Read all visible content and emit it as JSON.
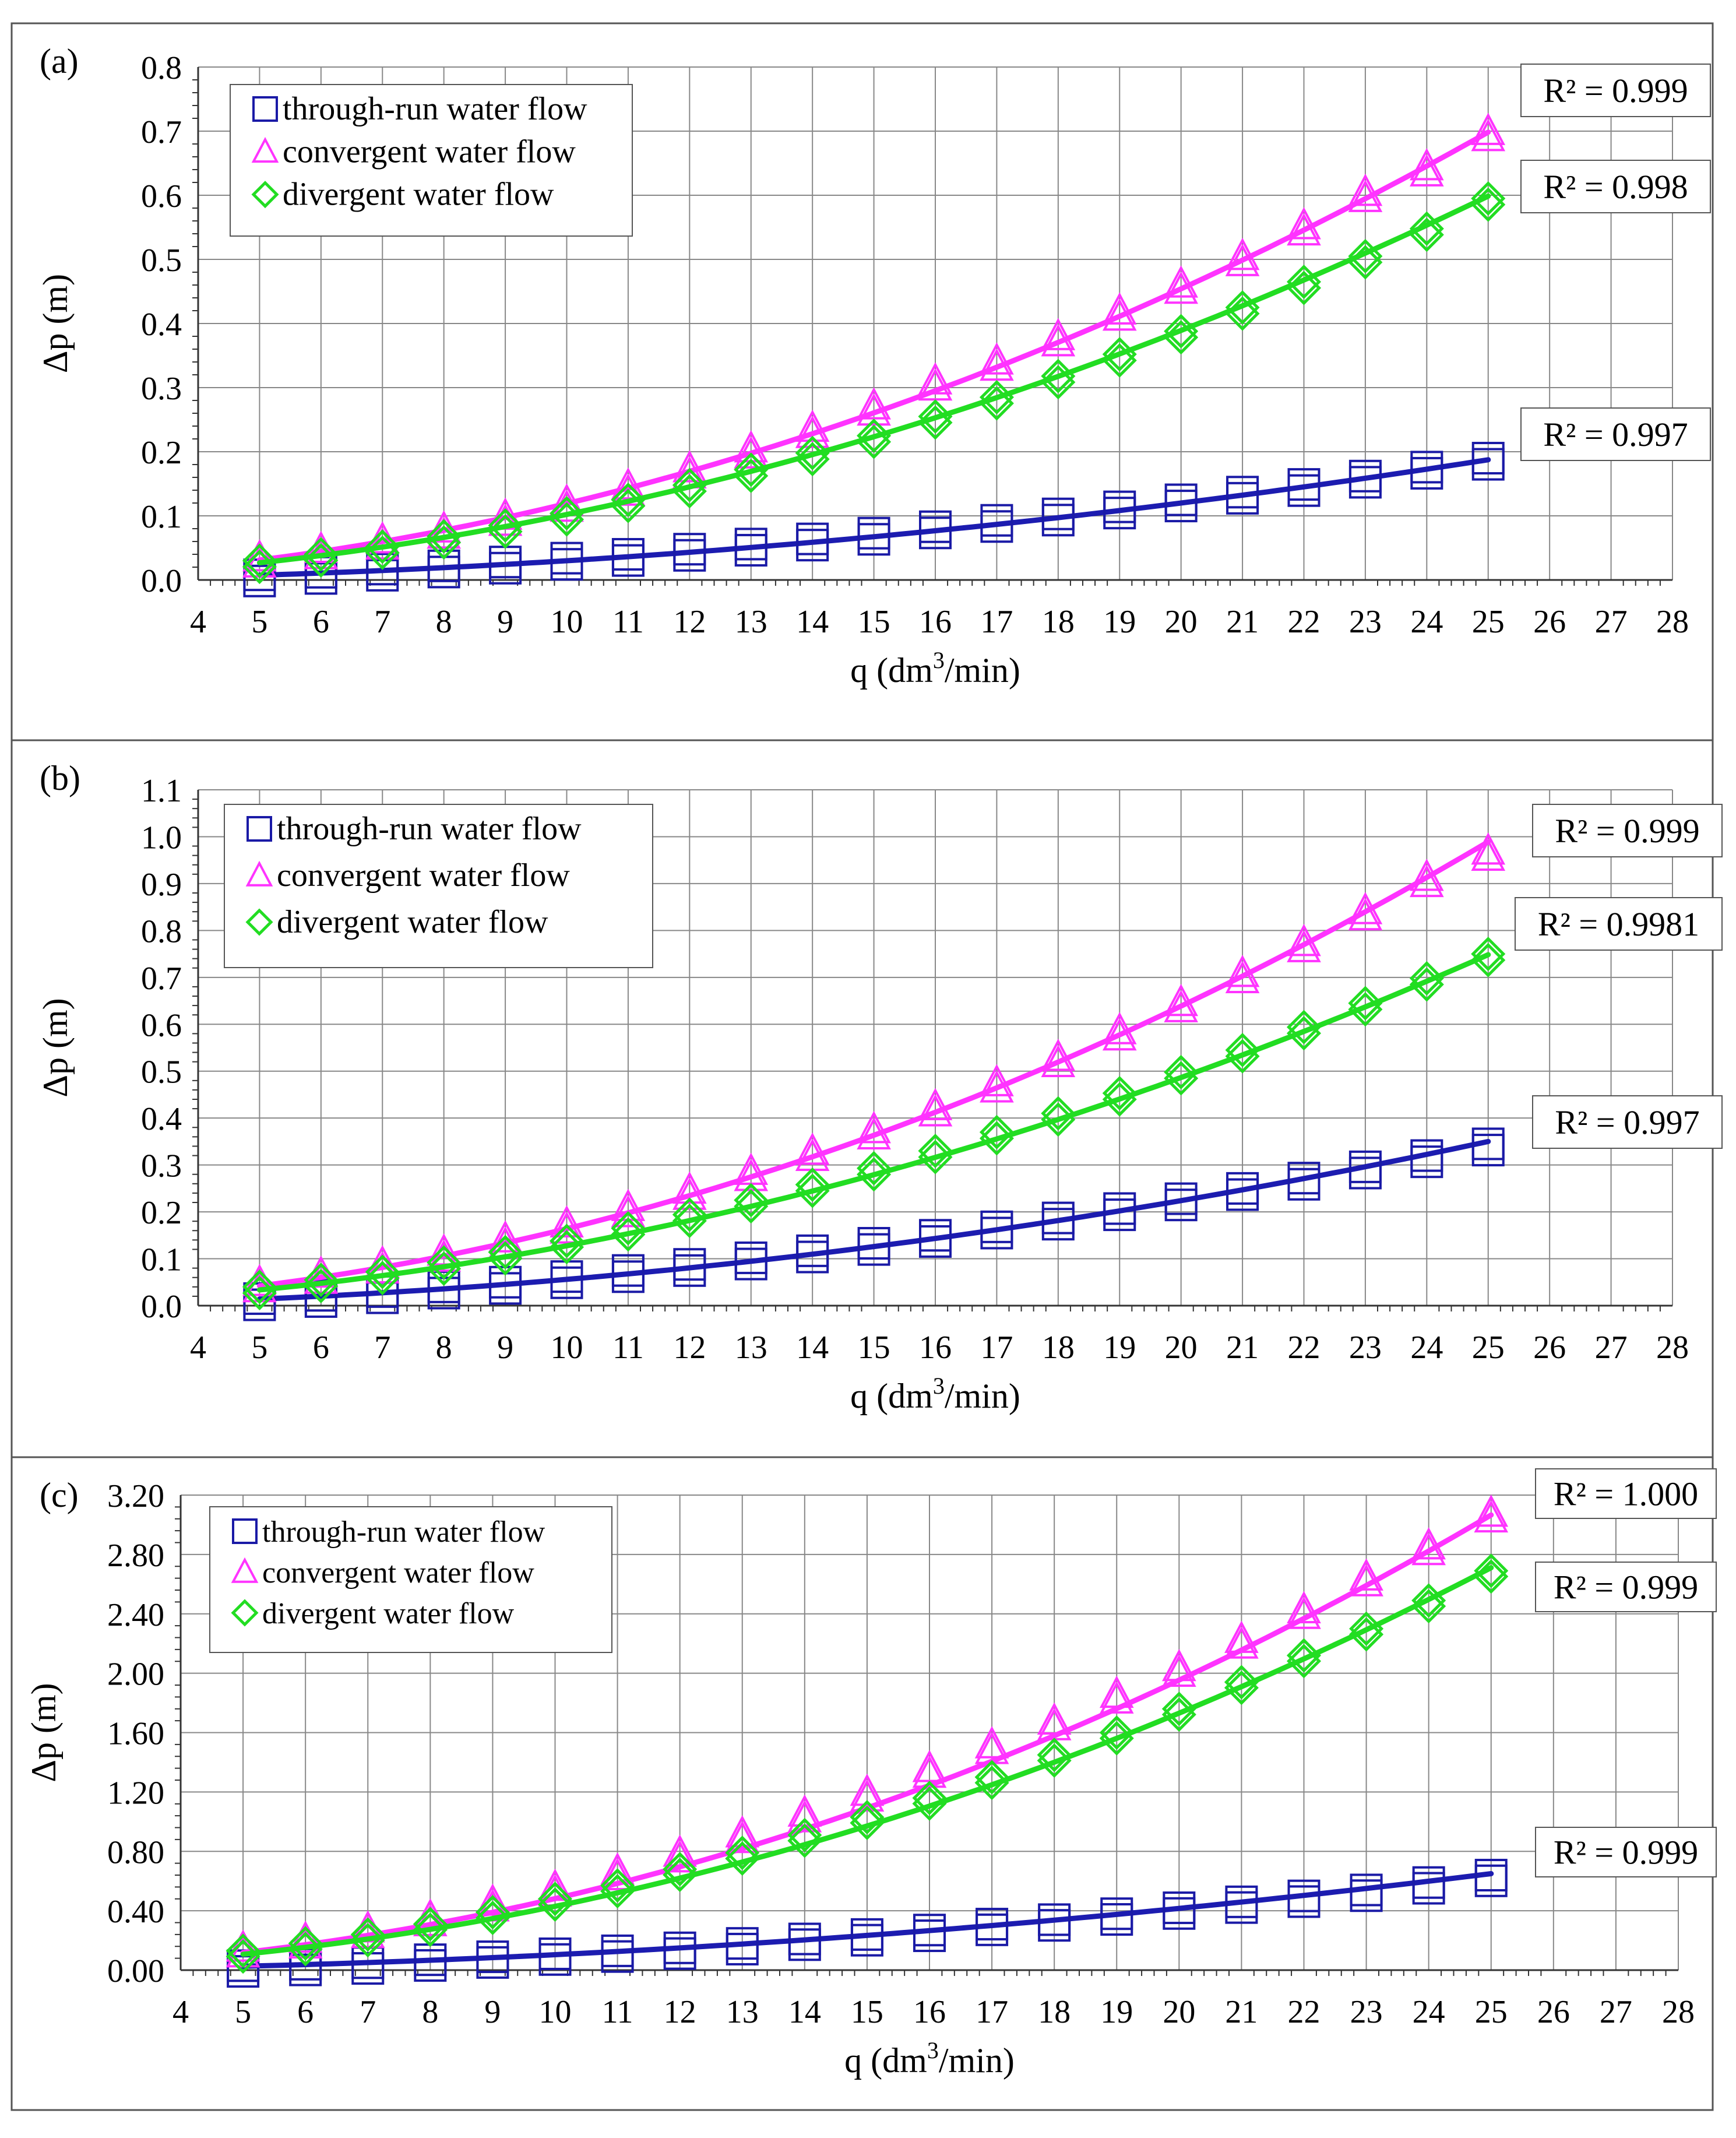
{
  "figure": {
    "panels": [
      {
        "chart_data": {
          "type": "scatter",
          "panel_label": "(a)",
          "xlabel": "q (dm3/min)",
          "ylabel": "Δp (m)",
          "xlim": [
            4,
            28
          ],
          "ylim": [
            0,
            0.8
          ],
          "x_ticks": [
            4,
            5,
            6,
            7,
            8,
            9,
            10,
            11,
            12,
            13,
            14,
            15,
            16,
            17,
            18,
            19,
            20,
            21,
            22,
            23,
            24,
            25,
            26,
            27,
            28
          ],
          "y_ticks": [
            0,
            0.1,
            0.2,
            0.3,
            0.4,
            0.5,
            0.6,
            0.7,
            0.8
          ],
          "y_tick_labels": [
            "0.0",
            "0.1",
            "0.2",
            "0.3",
            "0.4",
            "0.5",
            "0.6",
            "0.7",
            "0.8"
          ],
          "grid": true,
          "legend_position": "top-left",
          "x": [
            5,
            6,
            7,
            8,
            9,
            10,
            11,
            12,
            13,
            14,
            15,
            16,
            17,
            18,
            19,
            20,
            21,
            22,
            23,
            24,
            25
          ],
          "series": [
            {
              "name": "through-run water flow",
              "marker": "square",
              "marker_color": "#1a1aa6",
              "line_color": "#1c1cb0",
              "values": [
                0.008,
                0.012,
                0.017,
                0.022,
                0.028,
                0.034,
                0.04,
                0.048,
                0.056,
                0.064,
                0.073,
                0.083,
                0.093,
                0.103,
                0.114,
                0.125,
                0.137,
                0.149,
                0.162,
                0.176,
                0.19
              ],
              "fit": {
                "a": 0.0003,
                "b": 2.0
              }
            },
            {
              "name": "convergent water flow",
              "marker": "triangle",
              "marker_color": "#ff33ff",
              "line_color": "#ff33ff",
              "values": [
                0.035,
                0.048,
                0.063,
                0.08,
                0.1,
                0.122,
                0.147,
                0.174,
                0.205,
                0.237,
                0.272,
                0.311,
                0.342,
                0.38,
                0.42,
                0.462,
                0.505,
                0.553,
                0.605,
                0.645,
                0.7
              ],
              "fit": {
                "a": 0.0014,
                "b": 1.93
              }
            },
            {
              "name": "divergent water flow",
              "marker": "diamond",
              "marker_color": "#22dd22",
              "line_color": "#22dd22",
              "values": [
                0.03,
                0.04,
                0.052,
                0.068,
                0.085,
                0.104,
                0.125,
                0.148,
                0.172,
                0.198,
                0.225,
                0.255,
                0.285,
                0.318,
                0.352,
                0.388,
                0.425,
                0.465,
                0.505,
                0.548,
                0.595
              ],
              "fit": {
                "a": 0.0012,
                "b": 1.93
              }
            }
          ],
          "annotations": [
            "R² = 0.999",
            "R² = 0.998",
            "R² = 0.997"
          ]
        }
      },
      {
        "chart_data": {
          "type": "scatter",
          "panel_label": "(b)",
          "xlabel": "q (dm3/min)",
          "ylabel": "Δp (m)",
          "xlim": [
            4,
            28
          ],
          "ylim": [
            0,
            1.1
          ],
          "x_ticks": [
            4,
            5,
            6,
            7,
            8,
            9,
            10,
            11,
            12,
            13,
            14,
            15,
            16,
            17,
            18,
            19,
            20,
            21,
            22,
            23,
            24,
            25,
            26,
            27,
            28
          ],
          "y_ticks": [
            0,
            0.1,
            0.2,
            0.3,
            0.4,
            0.5,
            0.6,
            0.7,
            0.8,
            0.9,
            1.0,
            1.1
          ],
          "y_tick_labels": [
            "0.0",
            "0.1",
            "0.2",
            "0.3",
            "0.4",
            "0.5",
            "0.6",
            "0.7",
            "0.8",
            "0.9",
            "1.0",
            "1.1"
          ],
          "grid": true,
          "legend_position": "top-left",
          "x": [
            5,
            6,
            7,
            8,
            9,
            10,
            11,
            12,
            13,
            14,
            15,
            16,
            17,
            18,
            19,
            20,
            21,
            22,
            23,
            24,
            25
          ],
          "series": [
            {
              "name": "through-run water flow",
              "marker": "square",
              "marker_color": "#1a1aa6",
              "line_color": "#1c1cb0",
              "values": [
                0.015,
                0.022,
                0.03,
                0.04,
                0.05,
                0.062,
                0.075,
                0.088,
                0.102,
                0.117,
                0.133,
                0.15,
                0.168,
                0.187,
                0.207,
                0.228,
                0.25,
                0.272,
                0.296,
                0.32,
                0.345
              ],
              "fit": {
                "a": 0.00056,
                "b": 2.0
              }
            },
            {
              "name": "convergent water flow",
              "marker": "triangle",
              "marker_color": "#ff33ff",
              "line_color": "#ff33ff",
              "values": [
                0.05,
                0.068,
                0.09,
                0.115,
                0.143,
                0.175,
                0.21,
                0.247,
                0.287,
                0.33,
                0.376,
                0.425,
                0.476,
                0.53,
                0.587,
                0.647,
                0.709,
                0.775,
                0.843,
                0.914,
                0.97
              ],
              "fit": {
                "a": 0.0018,
                "b": 1.96
              }
            },
            {
              "name": "divergent water flow",
              "marker": "diamond",
              "marker_color": "#22dd22",
              "line_color": "#22dd22",
              "values": [
                0.04,
                0.055,
                0.072,
                0.092,
                0.114,
                0.138,
                0.165,
                0.194,
                0.225,
                0.258,
                0.293,
                0.33,
                0.37,
                0.41,
                0.453,
                0.498,
                0.545,
                0.594,
                0.645,
                0.698,
                0.75
              ],
              "fit": {
                "a": 0.0015,
                "b": 1.93
              }
            }
          ],
          "annotations": [
            "R² = 0.999",
            "R² = 0.9981",
            "R² = 0.997"
          ]
        }
      },
      {
        "chart_data": {
          "type": "scatter",
          "panel_label": "(c)",
          "xlabel": "q (dm3/min)",
          "ylabel": "Δp (m)",
          "xlim": [
            4,
            28
          ],
          "ylim": [
            0,
            3.2
          ],
          "x_ticks": [
            4,
            5,
            6,
            7,
            8,
            9,
            10,
            11,
            12,
            13,
            14,
            15,
            16,
            17,
            18,
            19,
            20,
            21,
            22,
            23,
            24,
            25,
            26,
            27,
            28
          ],
          "y_ticks": [
            0,
            0.4,
            0.8,
            1.2,
            1.6,
            2.0,
            2.4,
            2.8,
            3.2
          ],
          "y_tick_labels": [
            "0.00",
            "0.40",
            "0.80",
            "1.20",
            "1.60",
            "2.00",
            "2.40",
            "2.80",
            "3.20"
          ],
          "grid": true,
          "legend_position": "top-left",
          "x": [
            5,
            6,
            7,
            8,
            9,
            10,
            11,
            12,
            13,
            14,
            15,
            16,
            17,
            18,
            19,
            20,
            21,
            22,
            23,
            24,
            25
          ],
          "series": [
            {
              "name": "through-run water flow",
              "marker": "square",
              "marker_color": "#1a1aa6",
              "line_color": "#1c1cb0",
              "values": [
                0.03,
                0.04,
                0.05,
                0.07,
                0.09,
                0.11,
                0.13,
                0.15,
                0.18,
                0.21,
                0.24,
                0.27,
                0.31,
                0.34,
                0.38,
                0.42,
                0.46,
                0.5,
                0.54,
                0.59,
                0.64
              ],
              "fit": {
                "a": 0.00104,
                "b": 2.0
              }
            },
            {
              "name": "convergent water flow",
              "marker": "triangle",
              "marker_color": "#ff33ff",
              "line_color": "#ff33ff",
              "values": [
                0.15,
                0.21,
                0.28,
                0.36,
                0.46,
                0.56,
                0.67,
                0.79,
                0.92,
                1.06,
                1.2,
                1.36,
                1.52,
                1.68,
                1.86,
                2.04,
                2.23,
                2.43,
                2.65,
                2.86,
                3.08
              ],
              "fit": {
                "a": 0.0046,
                "b": 2.02
              }
            },
            {
              "name": "divergent water flow",
              "marker": "diamond",
              "marker_color": "#22dd22",
              "line_color": "#22dd22",
              "values": [
                0.13,
                0.18,
                0.24,
                0.31,
                0.39,
                0.48,
                0.57,
                0.68,
                0.79,
                0.91,
                1.03,
                1.16,
                1.3,
                1.45,
                1.6,
                1.76,
                1.94,
                2.12,
                2.3,
                2.49,
                2.69
              ],
              "fit": {
                "a": 0.0042,
                "b": 2.01
              }
            }
          ],
          "annotations": [
            "R² = 1.000",
            "R² = 0.999",
            "R² = 0.999"
          ]
        }
      }
    ]
  }
}
